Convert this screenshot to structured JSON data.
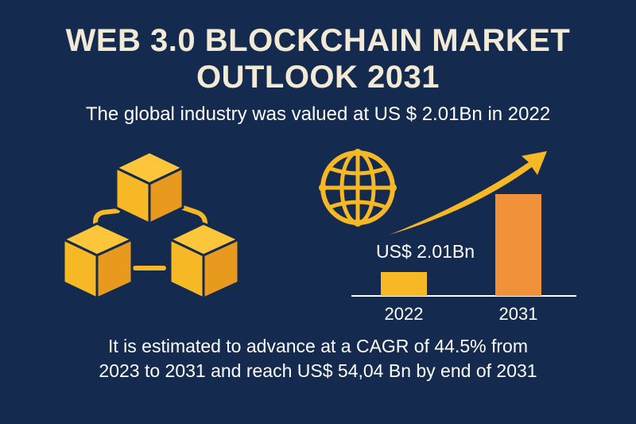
{
  "title_line1": "WEB 3.0 BLOCKCHAIN MARKET",
  "title_line2": "OUTLOOK 2031",
  "subtitle": "The global industry was valued at US $ 2.01Bn in 2022",
  "footer_line1": "It is estimated to advance at a CAGR of 44.5% from",
  "footer_line2": "2023 to 2031 and reach US$ 54,04 Bn by end of 2031",
  "colors": {
    "background": "#142a4e",
    "gold": "#f6b824",
    "orange": "#f1913a",
    "cube_front": "#f6b824",
    "cube_side": "#e89a1e",
    "cube_top": "#fbc63a"
  },
  "icons": [
    "blockchain-cubes-icon",
    "globe-icon",
    "growth-arrow-icon"
  ],
  "chart_data": {
    "type": "bar",
    "categories": [
      "2022",
      "2031"
    ],
    "values": [
      2.01,
      54.04
    ],
    "value_labels": [
      "US$ 2.01Bn",
      ""
    ],
    "colors": [
      "#f6b824",
      "#f1913a"
    ]
  }
}
